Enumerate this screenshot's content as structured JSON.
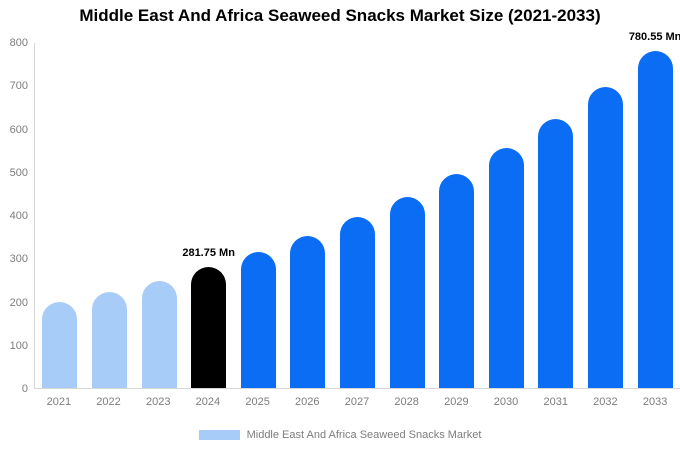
{
  "title": "Middle East And Africa Seaweed Snacks Market Size (2021-2033)",
  "colors": {
    "historical": "#a6ccf7",
    "highlight": "#000000",
    "forecast": "#0b6cf4",
    "axis_line": "#d8d8d8",
    "tick_text": "#7d7d7d"
  },
  "legend": {
    "label": "Middle East And Africa Seaweed Snacks Market",
    "swatch_color": "#a6ccf7"
  },
  "chart_data": {
    "type": "bar",
    "title": "Middle East And Africa Seaweed Snacks Market Size (2021-2033)",
    "xlabel": "",
    "ylabel": "",
    "ylim": [
      0,
      800
    ],
    "yticks": [
      0,
      100,
      200,
      300,
      400,
      500,
      600,
      700,
      800
    ],
    "grid": false,
    "legend_position": "bottom",
    "unit": "Mn",
    "categories": [
      "2021",
      "2022",
      "2023",
      "2024",
      "2025",
      "2026",
      "2027",
      "2028",
      "2029",
      "2030",
      "2031",
      "2032",
      "2033"
    ],
    "values": [
      200,
      223,
      249,
      281.75,
      315.56,
      353.43,
      395.84,
      443.34,
      496.54,
      556.13,
      622.86,
      697.6,
      780.55
    ],
    "color_roles": [
      "historical",
      "historical",
      "historical",
      "highlight",
      "forecast",
      "forecast",
      "forecast",
      "forecast",
      "forecast",
      "forecast",
      "forecast",
      "forecast",
      "forecast"
    ],
    "data_labels": [
      {
        "index": 3,
        "text": "281.75 Mn"
      },
      {
        "index": 12,
        "text": "780.55 Mn"
      }
    ]
  }
}
